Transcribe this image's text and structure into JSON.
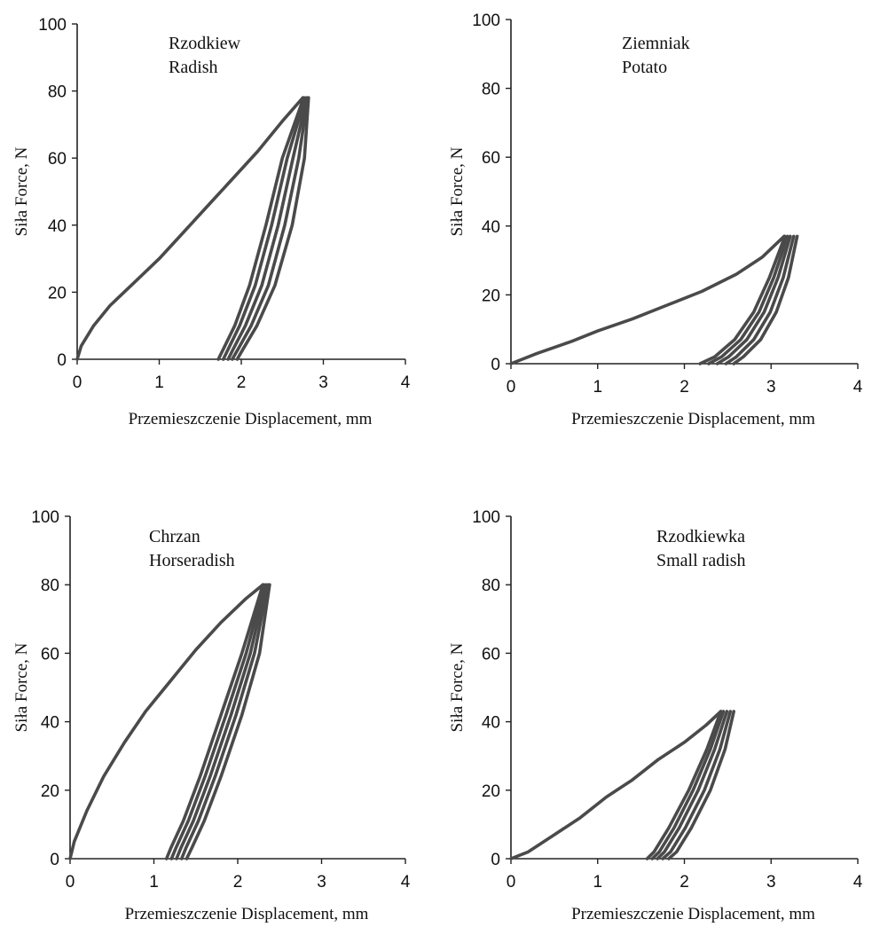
{
  "chart_data": [
    {
      "type": "line",
      "title": "",
      "annotation": [
        "Rzodkiew",
        "Radish"
      ],
      "xlabel": "Przemieszczenie Displacement, mm",
      "ylabel": "Siła Force, N",
      "xlim": [
        0,
        4
      ],
      "ylim": [
        0,
        100
      ],
      "xticks": [
        "0",
        "1",
        "2",
        "3",
        "4"
      ],
      "yticks": [
        "0",
        "20",
        "40",
        "60",
        "80",
        "100"
      ],
      "grid": false,
      "series": [
        {
          "x": [
            0,
            0.05,
            0.2,
            0.4,
            0.7,
            1.0,
            1.3,
            1.6,
            1.9,
            2.2,
            2.5,
            2.75
          ],
          "y": [
            0,
            4,
            10,
            16,
            23,
            30,
            38,
            46,
            54,
            62,
            71,
            78
          ]
        },
        {
          "x": [
            2.76,
            2.5,
            2.3,
            2.1,
            1.92,
            1.78,
            1.72
          ],
          "y": [
            78,
            60,
            40,
            22,
            10,
            3,
            0
          ]
        },
        {
          "x": [
            2.78,
            2.56,
            2.37,
            2.17,
            1.98,
            1.84,
            1.78
          ],
          "y": [
            78,
            60,
            40,
            22,
            10,
            3,
            0
          ]
        },
        {
          "x": [
            2.8,
            2.63,
            2.45,
            2.25,
            2.05,
            1.9,
            1.84
          ],
          "y": [
            78,
            60,
            40,
            22,
            10,
            3,
            0
          ]
        },
        {
          "x": [
            2.81,
            2.7,
            2.53,
            2.33,
            2.12,
            1.96,
            1.89
          ],
          "y": [
            78,
            60,
            40,
            22,
            10,
            3,
            0
          ]
        },
        {
          "x": [
            2.82,
            2.77,
            2.62,
            2.41,
            2.19,
            2.02,
            1.95
          ],
          "y": [
            78,
            60,
            40,
            22,
            10,
            3,
            0
          ]
        }
      ]
    },
    {
      "type": "line",
      "title": "",
      "annotation": [
        "Ziemniak",
        "Potato"
      ],
      "xlabel": "Przemieszczenie Displacement, mm",
      "ylabel": "Siła Force, N",
      "xlim": [
        0,
        4
      ],
      "ylim": [
        0,
        100
      ],
      "xticks": [
        "0",
        "1",
        "2",
        "3",
        "4"
      ],
      "yticks": [
        "0",
        "20",
        "40",
        "60",
        "80",
        "100"
      ],
      "grid": false,
      "series": [
        {
          "x": [
            0,
            0.3,
            0.7,
            1.0,
            1.4,
            1.8,
            2.2,
            2.6,
            2.9,
            3.15
          ],
          "y": [
            0,
            3,
            6.5,
            9.5,
            13,
            17,
            21,
            26,
            31,
            37
          ]
        },
        {
          "x": [
            3.16,
            2.98,
            2.8,
            2.58,
            2.35,
            2.18
          ],
          "y": [
            37,
            25,
            15,
            7,
            2,
            0
          ]
        },
        {
          "x": [
            3.19,
            3.03,
            2.86,
            2.65,
            2.43,
            2.28
          ],
          "y": [
            37,
            25,
            15,
            7,
            2,
            0
          ]
        },
        {
          "x": [
            3.22,
            3.08,
            2.92,
            2.72,
            2.51,
            2.38
          ],
          "y": [
            37,
            25,
            15,
            7,
            2,
            0
          ]
        },
        {
          "x": [
            3.26,
            3.14,
            2.99,
            2.8,
            2.6,
            2.48
          ],
          "y": [
            37,
            25,
            15,
            7,
            2,
            0
          ]
        },
        {
          "x": [
            3.3,
            3.2,
            3.06,
            2.88,
            2.68,
            2.57
          ],
          "y": [
            37,
            25,
            15,
            7,
            2,
            0
          ]
        }
      ]
    },
    {
      "type": "line",
      "title": "",
      "annotation": [
        "Chrzan",
        "Horseradish"
      ],
      "xlabel": "Przemieszczenie Displacement, mm",
      "ylabel": "Siła Force, N",
      "xlim": [
        0,
        4
      ],
      "ylim": [
        0,
        100
      ],
      "xticks": [
        "0",
        "1",
        "2",
        "3",
        "4"
      ],
      "yticks": [
        "0",
        "20",
        "40",
        "60",
        "80",
        "100"
      ],
      "grid": false,
      "series": [
        {
          "x": [
            0,
            0.05,
            0.2,
            0.4,
            0.65,
            0.9,
            1.2,
            1.5,
            1.8,
            2.1,
            2.3
          ],
          "y": [
            0,
            5,
            14,
            24,
            34,
            43,
            52,
            61,
            69,
            76,
            80
          ]
        },
        {
          "x": [
            2.3,
            2.05,
            1.8,
            1.55,
            1.35,
            1.2,
            1.15
          ],
          "y": [
            80,
            60,
            42,
            24,
            11,
            3,
            0
          ]
        },
        {
          "x": [
            2.32,
            2.1,
            1.86,
            1.61,
            1.41,
            1.26,
            1.21
          ],
          "y": [
            80,
            60,
            42,
            24,
            11,
            3,
            0
          ]
        },
        {
          "x": [
            2.34,
            2.15,
            1.92,
            1.67,
            1.47,
            1.32,
            1.27
          ],
          "y": [
            80,
            60,
            42,
            24,
            11,
            3,
            0
          ]
        },
        {
          "x": [
            2.36,
            2.2,
            1.98,
            1.73,
            1.53,
            1.38,
            1.33
          ],
          "y": [
            80,
            60,
            42,
            24,
            11,
            3,
            0
          ]
        },
        {
          "x": [
            2.38,
            2.26,
            2.05,
            1.8,
            1.6,
            1.45,
            1.39
          ],
          "y": [
            80,
            60,
            42,
            24,
            11,
            3,
            0
          ]
        }
      ]
    },
    {
      "type": "line",
      "title": "",
      "annotation": [
        "Rzodkiewka",
        "Small radish"
      ],
      "xlabel": "Przemieszczenie Displacement, mm",
      "ylabel": "Siła Force, N",
      "xlim": [
        0,
        4
      ],
      "ylim": [
        0,
        100
      ],
      "xticks": [
        "0",
        "1",
        "2",
        "3",
        "4"
      ],
      "yticks": [
        "0",
        "20",
        "40",
        "60",
        "80",
        "100"
      ],
      "grid": false,
      "series": [
        {
          "x": [
            0,
            0.2,
            0.5,
            0.8,
            1.1,
            1.4,
            1.7,
            2.0,
            2.25,
            2.42
          ],
          "y": [
            0,
            2,
            7,
            12,
            18,
            23,
            29,
            34,
            39,
            43
          ]
        },
        {
          "x": [
            2.42,
            2.26,
            2.05,
            1.82,
            1.65,
            1.57
          ],
          "y": [
            43,
            32,
            20,
            9,
            2,
            0
          ]
        },
        {
          "x": [
            2.45,
            2.3,
            2.1,
            1.88,
            1.71,
            1.63
          ],
          "y": [
            43,
            32,
            20,
            9,
            2,
            0
          ]
        },
        {
          "x": [
            2.49,
            2.35,
            2.16,
            1.94,
            1.77,
            1.69
          ],
          "y": [
            43,
            32,
            20,
            9,
            2,
            0
          ]
        },
        {
          "x": [
            2.53,
            2.41,
            2.23,
            2.01,
            1.84,
            1.75
          ],
          "y": [
            43,
            32,
            20,
            9,
            2,
            0
          ]
        },
        {
          "x": [
            2.57,
            2.47,
            2.3,
            2.08,
            1.91,
            1.82
          ],
          "y": [
            43,
            32,
            20,
            9,
            2,
            0
          ]
        }
      ]
    }
  ]
}
